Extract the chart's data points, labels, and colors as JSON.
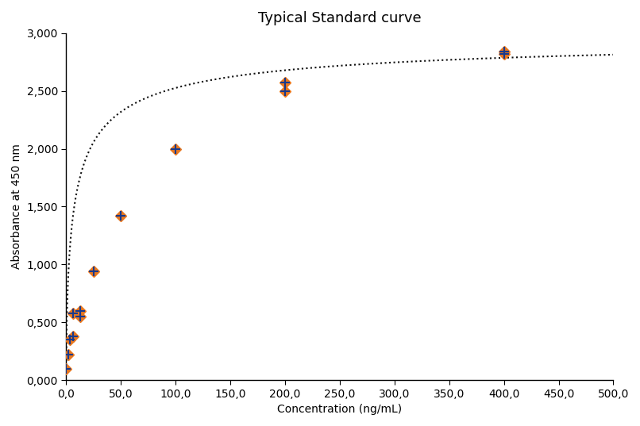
{
  "title": "Typical Standard curve",
  "xlabel": "Concentration (ng/mL)",
  "ylabel": "Absorbance at 450 nm",
  "xlim": [
    0,
    500
  ],
  "ylim": [
    0,
    3.0
  ],
  "xticks": [
    0,
    50,
    100,
    150,
    200,
    250,
    300,
    350,
    400,
    450,
    500
  ],
  "yticks": [
    0.0,
    0.5,
    1.0,
    1.5,
    2.0,
    2.5,
    3.0
  ],
  "x_data": [
    0.0,
    1.56,
    3.125,
    6.25,
    6.25,
    12.5,
    12.5,
    25.0,
    50.0,
    100.0,
    200.0,
    200.0,
    400.0,
    400.0
  ],
  "y_data": [
    0.1,
    0.22,
    0.35,
    0.38,
    0.58,
    0.55,
    0.6,
    0.94,
    1.42,
    2.0,
    2.5,
    2.57,
    2.82,
    2.84
  ],
  "orange_color": "#E87820",
  "blue_color": "#1A3A8C",
  "curve_color": "#111111",
  "title_fontsize": 13,
  "label_fontsize": 10,
  "tick_fontsize": 10,
  "background_color": "#FFFFFF",
  "outer_background": "#FFFFFF"
}
